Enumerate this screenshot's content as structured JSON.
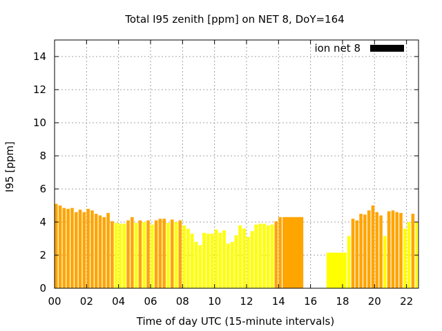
{
  "chart_data": {
    "type": "bar",
    "title": "Total I95 zenith [ppm] on NET 8, DoY=164",
    "xlabel": "Time of day UTC (15-minute intervals)",
    "ylabel": "I95 [ppm]",
    "xlim": [
      0,
      22.75
    ],
    "ylim": [
      0,
      15
    ],
    "x_ticks": [
      0,
      2,
      4,
      6,
      8,
      10,
      12,
      14,
      16,
      18,
      20,
      22
    ],
    "x_tick_labels": [
      "00",
      "02",
      "04",
      "06",
      "08",
      "10",
      "12",
      "14",
      "16",
      "18",
      "20",
      "22"
    ],
    "y_ticks": [
      0,
      2,
      4,
      6,
      8,
      10,
      12,
      14
    ],
    "y_tick_labels": [
      "0",
      "2",
      "4",
      "6",
      "8",
      "10",
      "12",
      "14"
    ],
    "grid": true,
    "legend": {
      "label": "ion net 8",
      "position": "top-right",
      "color": "#000000"
    },
    "colors": {
      "orange": "#FFA500",
      "yellow": "#FFFF00"
    },
    "bars": [
      {
        "x": 0.0,
        "w": 0.25,
        "y": 5.1,
        "c": "orange"
      },
      {
        "x": 0.25,
        "w": 0.25,
        "y": 5.0,
        "c": "orange"
      },
      {
        "x": 0.5,
        "w": 0.25,
        "y": 4.85,
        "c": "orange"
      },
      {
        "x": 0.75,
        "w": 0.25,
        "y": 4.8,
        "c": "orange"
      },
      {
        "x": 1.0,
        "w": 0.25,
        "y": 4.85,
        "c": "orange"
      },
      {
        "x": 1.25,
        "w": 0.25,
        "y": 4.6,
        "c": "orange"
      },
      {
        "x": 1.5,
        "w": 0.25,
        "y": 4.75,
        "c": "orange"
      },
      {
        "x": 1.75,
        "w": 0.25,
        "y": 4.6,
        "c": "orange"
      },
      {
        "x": 2.0,
        "w": 0.25,
        "y": 4.8,
        "c": "orange"
      },
      {
        "x": 2.25,
        "w": 0.25,
        "y": 4.7,
        "c": "orange"
      },
      {
        "x": 2.5,
        "w": 0.25,
        "y": 4.5,
        "c": "orange"
      },
      {
        "x": 2.75,
        "w": 0.25,
        "y": 4.4,
        "c": "orange"
      },
      {
        "x": 3.0,
        "w": 0.25,
        "y": 4.3,
        "c": "orange"
      },
      {
        "x": 3.25,
        "w": 0.25,
        "y": 4.55,
        "c": "orange"
      },
      {
        "x": 3.5,
        "w": 0.25,
        "y": 4.05,
        "c": "orange"
      },
      {
        "x": 3.75,
        "w": 0.25,
        "y": 3.95,
        "c": "yellow"
      },
      {
        "x": 4.0,
        "w": 0.25,
        "y": 3.9,
        "c": "yellow"
      },
      {
        "x": 4.25,
        "w": 0.25,
        "y": 3.9,
        "c": "yellow"
      },
      {
        "x": 4.5,
        "w": 0.25,
        "y": 4.1,
        "c": "orange"
      },
      {
        "x": 4.75,
        "w": 0.25,
        "y": 4.3,
        "c": "orange"
      },
      {
        "x": 5.0,
        "w": 0.25,
        "y": 3.95,
        "c": "yellow"
      },
      {
        "x": 5.25,
        "w": 0.25,
        "y": 4.1,
        "c": "orange"
      },
      {
        "x": 5.5,
        "w": 0.25,
        "y": 4.0,
        "c": "yellow"
      },
      {
        "x": 5.75,
        "w": 0.25,
        "y": 4.1,
        "c": "orange"
      },
      {
        "x": 6.0,
        "w": 0.25,
        "y": 3.85,
        "c": "yellow"
      },
      {
        "x": 6.25,
        "w": 0.25,
        "y": 4.1,
        "c": "orange"
      },
      {
        "x": 6.5,
        "w": 0.25,
        "y": 4.2,
        "c": "orange"
      },
      {
        "x": 6.75,
        "w": 0.25,
        "y": 4.2,
        "c": "orange"
      },
      {
        "x": 7.0,
        "w": 0.25,
        "y": 3.95,
        "c": "yellow"
      },
      {
        "x": 7.25,
        "w": 0.25,
        "y": 4.15,
        "c": "orange"
      },
      {
        "x": 7.5,
        "w": 0.25,
        "y": 4.0,
        "c": "yellow"
      },
      {
        "x": 7.75,
        "w": 0.25,
        "y": 4.1,
        "c": "orange"
      },
      {
        "x": 8.0,
        "w": 0.25,
        "y": 3.8,
        "c": "yellow"
      },
      {
        "x": 8.25,
        "w": 0.25,
        "y": 3.6,
        "c": "yellow"
      },
      {
        "x": 8.5,
        "w": 0.25,
        "y": 3.3,
        "c": "yellow"
      },
      {
        "x": 8.75,
        "w": 0.25,
        "y": 2.8,
        "c": "yellow"
      },
      {
        "x": 9.0,
        "w": 0.25,
        "y": 2.6,
        "c": "yellow"
      },
      {
        "x": 9.25,
        "w": 0.25,
        "y": 3.35,
        "c": "yellow"
      },
      {
        "x": 9.5,
        "w": 0.25,
        "y": 3.3,
        "c": "yellow"
      },
      {
        "x": 9.75,
        "w": 0.25,
        "y": 3.3,
        "c": "yellow"
      },
      {
        "x": 10.0,
        "w": 0.25,
        "y": 3.55,
        "c": "yellow"
      },
      {
        "x": 10.25,
        "w": 0.25,
        "y": 3.35,
        "c": "yellow"
      },
      {
        "x": 10.5,
        "w": 0.25,
        "y": 3.5,
        "c": "yellow"
      },
      {
        "x": 10.75,
        "w": 0.25,
        "y": 2.7,
        "c": "yellow"
      },
      {
        "x": 11.0,
        "w": 0.25,
        "y": 2.8,
        "c": "yellow"
      },
      {
        "x": 11.25,
        "w": 0.25,
        "y": 3.2,
        "c": "yellow"
      },
      {
        "x": 11.5,
        "w": 0.25,
        "y": 3.8,
        "c": "yellow"
      },
      {
        "x": 11.75,
        "w": 0.25,
        "y": 3.6,
        "c": "yellow"
      },
      {
        "x": 12.0,
        "w": 0.25,
        "y": 3.1,
        "c": "yellow"
      },
      {
        "x": 12.25,
        "w": 0.25,
        "y": 3.45,
        "c": "yellow"
      },
      {
        "x": 12.5,
        "w": 0.25,
        "y": 3.85,
        "c": "yellow"
      },
      {
        "x": 12.75,
        "w": 0.25,
        "y": 3.9,
        "c": "yellow"
      },
      {
        "x": 13.0,
        "w": 0.25,
        "y": 3.9,
        "c": "yellow"
      },
      {
        "x": 13.25,
        "w": 0.25,
        "y": 3.8,
        "c": "yellow"
      },
      {
        "x": 13.5,
        "w": 0.25,
        "y": 3.85,
        "c": "yellow"
      },
      {
        "x": 13.75,
        "w": 0.25,
        "y": 4.05,
        "c": "orange"
      },
      {
        "x": 14.0,
        "w": 0.25,
        "y": 4.3,
        "c": "orange"
      },
      {
        "x": 14.25,
        "w": 1.35,
        "y": 4.3,
        "c": "orange"
      },
      {
        "x": 17.0,
        "w": 1.3,
        "y": 2.15,
        "c": "yellow"
      },
      {
        "x": 18.3,
        "w": 0.25,
        "y": 3.15,
        "c": "yellow"
      },
      {
        "x": 18.55,
        "w": 0.25,
        "y": 4.2,
        "c": "orange"
      },
      {
        "x": 18.8,
        "w": 0.25,
        "y": 4.1,
        "c": "orange"
      },
      {
        "x": 19.05,
        "w": 0.25,
        "y": 4.5,
        "c": "orange"
      },
      {
        "x": 19.3,
        "w": 0.25,
        "y": 4.45,
        "c": "orange"
      },
      {
        "x": 19.55,
        "w": 0.25,
        "y": 4.7,
        "c": "orange"
      },
      {
        "x": 19.8,
        "w": 0.25,
        "y": 5.0,
        "c": "orange"
      },
      {
        "x": 20.05,
        "w": 0.25,
        "y": 4.6,
        "c": "orange"
      },
      {
        "x": 20.3,
        "w": 0.25,
        "y": 4.4,
        "c": "orange"
      },
      {
        "x": 20.55,
        "w": 0.25,
        "y": 3.15,
        "c": "yellow"
      },
      {
        "x": 20.8,
        "w": 0.25,
        "y": 4.65,
        "c": "orange"
      },
      {
        "x": 21.05,
        "w": 0.25,
        "y": 4.7,
        "c": "orange"
      },
      {
        "x": 21.3,
        "w": 0.25,
        "y": 4.6,
        "c": "orange"
      },
      {
        "x": 21.55,
        "w": 0.25,
        "y": 4.55,
        "c": "orange"
      },
      {
        "x": 21.8,
        "w": 0.25,
        "y": 3.6,
        "c": "yellow"
      },
      {
        "x": 22.05,
        "w": 0.25,
        "y": 4.0,
        "c": "yellow"
      },
      {
        "x": 22.3,
        "w": 0.25,
        "y": 4.5,
        "c": "orange"
      },
      {
        "x": 22.55,
        "w": 0.2,
        "y": 4.0,
        "c": "yellow"
      }
    ]
  }
}
